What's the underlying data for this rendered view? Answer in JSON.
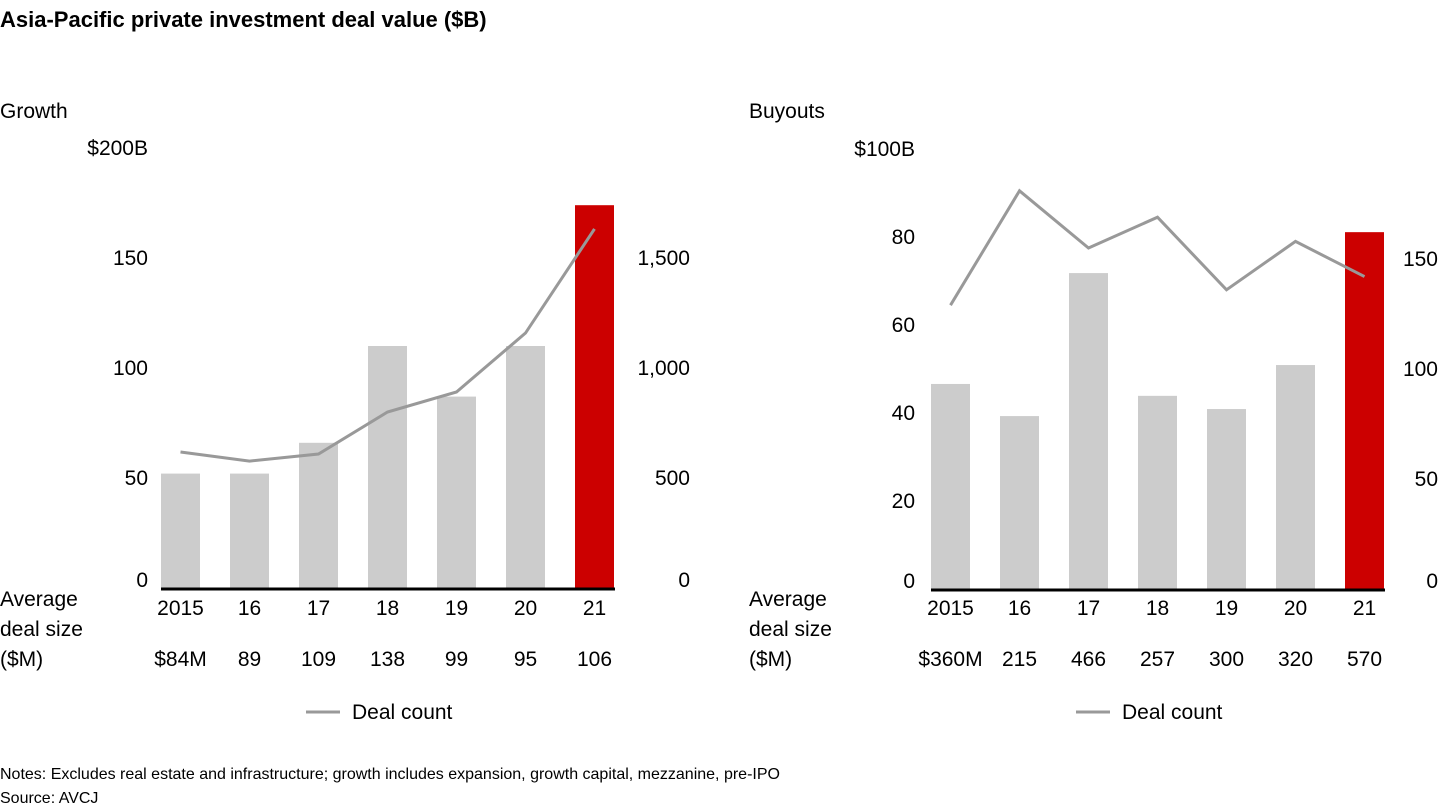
{
  "title": "Asia-Pacific private investment deal value ($B)",
  "colors": {
    "bar": "#cccccc",
    "highlight": "#cc0000",
    "line": "#999999",
    "axis": "#000000"
  },
  "avg_label": [
    "Average",
    "deal size",
    "($M)"
  ],
  "legend_label": "Deal count",
  "notes": "Notes: Excludes real estate and infrastructure; growth includes expansion, growth capital, mezzanine, pre-IPO",
  "source": "Source: AVCJ",
  "chart_data": [
    {
      "type": "bar+line",
      "title": "Growth",
      "categories": [
        "2015",
        "16",
        "17",
        "18",
        "19",
        "20",
        "21"
      ],
      "ylim": [
        0,
        200
      ],
      "y_ticks": [
        "0",
        "50",
        "100",
        "150",
        "$200B"
      ],
      "y_tick_values": [
        0,
        50,
        100,
        150,
        200
      ],
      "y2lim": [
        0,
        2000
      ],
      "y2_ticks": [
        "0",
        "500",
        "1,000",
        "1,500"
      ],
      "y2_tick_values": [
        0,
        500,
        1000,
        1500
      ],
      "series": [
        {
          "type": "bar",
          "axis": "left",
          "values": [
            52,
            52,
            66,
            110,
            87,
            110,
            174
          ],
          "highlight_index": 6
        },
        {
          "type": "line",
          "axis": "right",
          "name": "Deal count",
          "values": [
            618,
            577,
            609,
            800,
            891,
            1159,
            1632
          ]
        }
      ],
      "avg_deal_size": [
        "$84M",
        "89",
        "109",
        "138",
        "99",
        "95",
        "106"
      ],
      "legend": "bottom"
    },
    {
      "type": "bar+line",
      "title": "Buyouts",
      "categories": [
        "2015",
        "16",
        "17",
        "18",
        "19",
        "20",
        "21"
      ],
      "ylim": [
        0,
        100
      ],
      "y_ticks": [
        "0",
        "20",
        "40",
        "60",
        "80",
        "$100B"
      ],
      "y_tick_values": [
        0,
        20,
        40,
        60,
        80,
        100
      ],
      "y2lim": [
        0,
        200
      ],
      "y2_ticks": [
        "0",
        "50",
        "100",
        "150"
      ],
      "y2_tick_values": [
        0,
        50,
        100,
        150
      ],
      "series": [
        {
          "type": "bar",
          "axis": "left",
          "values": [
            46.6,
            39.3,
            71.8,
            43.9,
            40.9,
            50.9,
            81.1
          ],
          "highlight_index": 6
        },
        {
          "type": "line",
          "axis": "right",
          "name": "Deal count",
          "values": [
            129,
            181,
            155,
            169,
            136,
            158,
            142
          ]
        }
      ],
      "avg_deal_size": [
        "$360M",
        "215",
        "466",
        "257",
        "300",
        "320",
        "570"
      ],
      "legend": "bottom"
    }
  ]
}
